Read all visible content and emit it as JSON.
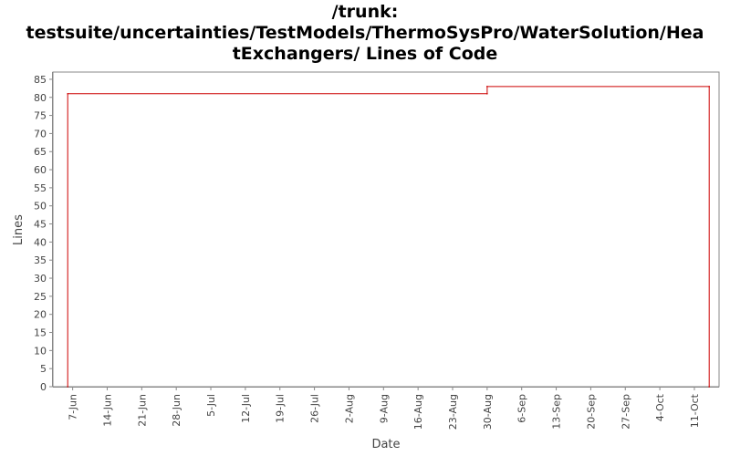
{
  "chart_data": {
    "type": "line",
    "line_style": "step",
    "title_lines": [
      "/trunk:",
      "testsuite/uncertainties/TestModels/ThermoSysPro/WaterSolution/Hea",
      "tExchangers/ Lines of Code"
    ],
    "xlabel": "Date",
    "ylabel": "Lines",
    "ylim": [
      0,
      87
    ],
    "yticks": [
      0,
      5,
      10,
      15,
      20,
      25,
      30,
      35,
      40,
      45,
      50,
      55,
      60,
      65,
      70,
      75,
      80,
      85
    ],
    "xlim": [
      "2008-06-03",
      "2008-10-16"
    ],
    "xticks": [
      {
        "label": "7-Jun",
        "date": "2008-06-07"
      },
      {
        "label": "14-Jun",
        "date": "2008-06-14"
      },
      {
        "label": "21-Jun",
        "date": "2008-06-21"
      },
      {
        "label": "28-Jun",
        "date": "2008-06-28"
      },
      {
        "label": "5-Jul",
        "date": "2008-07-05"
      },
      {
        "label": "12-Jul",
        "date": "2008-07-12"
      },
      {
        "label": "19-Jul",
        "date": "2008-07-19"
      },
      {
        "label": "26-Jul",
        "date": "2008-07-26"
      },
      {
        "label": "2-Aug",
        "date": "2008-08-02"
      },
      {
        "label": "9-Aug",
        "date": "2008-08-09"
      },
      {
        "label": "16-Aug",
        "date": "2008-08-16"
      },
      {
        "label": "23-Aug",
        "date": "2008-08-23"
      },
      {
        "label": "30-Aug",
        "date": "2008-08-30"
      },
      {
        "label": "6-Sep",
        "date": "2008-09-06"
      },
      {
        "label": "13-Sep",
        "date": "2008-09-13"
      },
      {
        "label": "20-Sep",
        "date": "2008-09-20"
      },
      {
        "label": "27-Sep",
        "date": "2008-09-27"
      },
      {
        "label": "4-Oct",
        "date": "2008-10-04"
      },
      {
        "label": "11-Oct",
        "date": "2008-10-11"
      }
    ],
    "series": [
      {
        "color": "#cc0000",
        "points": [
          {
            "x": "2008-06-06",
            "y": 0
          },
          {
            "x": "2008-06-06",
            "y": 81
          },
          {
            "x": "2008-08-30",
            "y": 81
          },
          {
            "x": "2008-08-30",
            "y": 83
          },
          {
            "x": "2008-10-14",
            "y": 83
          },
          {
            "x": "2008-10-14",
            "y": 0
          }
        ]
      }
    ],
    "grid": false
  }
}
